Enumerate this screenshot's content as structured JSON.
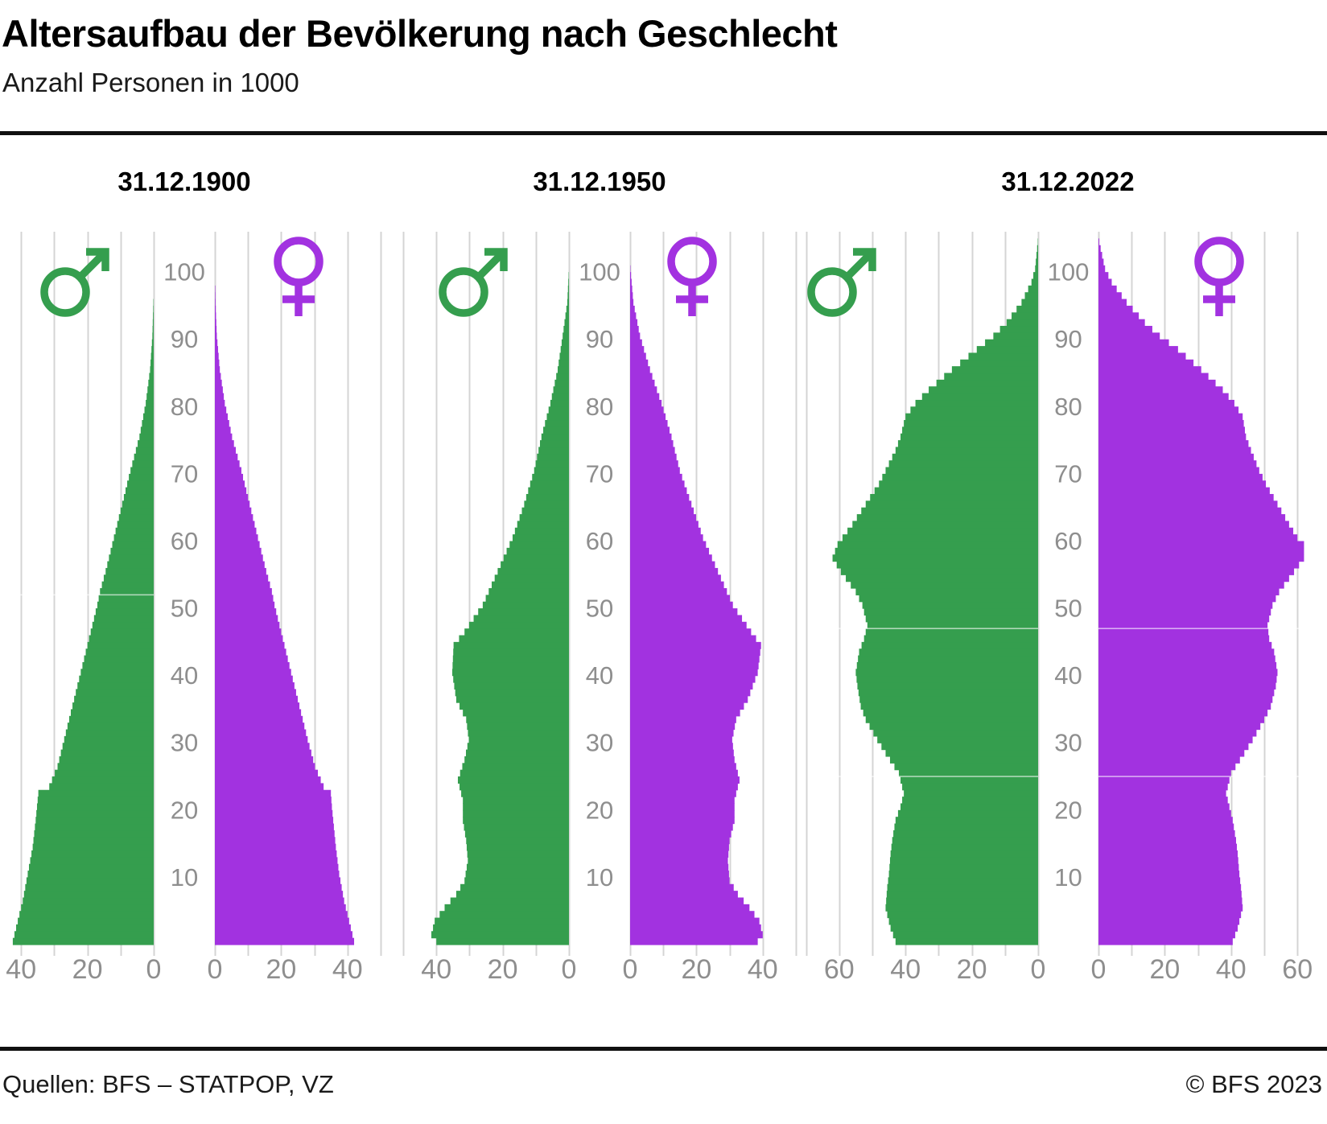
{
  "header": {
    "title": "Altersaufbau der Bevölkerung nach Geschlecht",
    "subtitle": "Anzahl Personen in 1000"
  },
  "footer": {
    "sources": "Quellen: BFS – STATPOP, VZ",
    "copyright": "© BFS 2023"
  },
  "colors": {
    "male": "#359E4E",
    "female": "#A232E0",
    "grid": "#D4D4D4",
    "axis_text": "#8E8E8E",
    "title_text": "#000000",
    "rule": "#101010"
  },
  "icons": {
    "male": "male-symbol-icon",
    "female": "female-symbol-icon"
  },
  "chart_data": [
    {
      "type": "bar",
      "subtype": "population-pyramid",
      "title": "31.12.1900",
      "unit": "Anzahl Personen in 1000",
      "age_ticks": [
        10,
        20,
        30,
        40,
        50,
        60,
        70,
        80,
        90,
        100
      ],
      "value_axis": {
        "male_ticks": [
          40,
          20,
          0
        ],
        "female_ticks": [
          0,
          20,
          40
        ],
        "grid_step": 10,
        "grid_max": 50
      },
      "series": [
        {
          "name": "male",
          "icon": "male-symbol-icon",
          "anchors": {
            "ages": [
              0,
              3,
              6,
              10,
              14,
              18,
              20,
              22,
              23,
              26,
              30,
              35,
              40,
              45,
              50,
              52,
              55,
              60,
              65,
              70,
              75,
              80,
              85,
              90,
              95,
              100
            ],
            "values": [
              42.5,
              41,
              39.5,
              38,
              36.5,
              35.6,
              35.2,
              34.8,
              31.5,
              29,
              27,
              24.5,
              22,
              19.5,
              17,
              16.2,
              14.5,
              12,
              9.5,
              7,
              4.3,
              2.4,
              1.1,
              0.4,
              0.1,
              0
            ]
          }
        },
        {
          "name": "female",
          "icon": "female-symbol-icon",
          "anchors": {
            "ages": [
              0,
              3,
              6,
              10,
              14,
              18,
              20,
              22,
              23,
              26,
              30,
              35,
              40,
              45,
              50,
              52,
              55,
              60,
              65,
              70,
              75,
              80,
              85,
              90,
              95,
              100
            ],
            "values": [
              42,
              40.5,
              39,
              37.5,
              36.5,
              35.7,
              35.3,
              35,
              32.8,
              30.2,
              28,
              25.5,
              23,
              20.5,
              18,
              17.2,
              15.5,
              13,
              10.5,
              8,
              5.2,
              3,
              1.5,
              0.6,
              0.2,
              0
            ]
          }
        }
      ]
    },
    {
      "type": "bar",
      "subtype": "population-pyramid",
      "title": "31.12.1950",
      "unit": "Anzahl Personen in 1000",
      "age_ticks": [
        10,
        20,
        30,
        40,
        50,
        60,
        70,
        80,
        90,
        100
      ],
      "value_axis": {
        "male_ticks": [
          40,
          20,
          0
        ],
        "female_ticks": [
          0,
          20,
          40
        ],
        "grid_step": 10,
        "grid_max": 50
      },
      "series": [
        {
          "name": "male",
          "icon": "male-symbol-icon",
          "anchors": {
            "ages": [
              0,
              1,
              3,
              5,
              7,
              9,
              12,
              15,
              18,
              21,
              24,
              27,
              30,
              33,
              36,
              40,
              44,
              46,
              50,
              55,
              60,
              65,
              70,
              75,
              80,
              85,
              90,
              95,
              100
            ],
            "values": [
              40,
              41.5,
              40.5,
              37.5,
              34,
              31.5,
              30.5,
              31,
              32,
              32,
              33.5,
              31.5,
              30.2,
              31,
              34,
              35.2,
              34.8,
              31.5,
              26,
              21.5,
              17,
              13.5,
              10.5,
              8.3,
              5.6,
              3.4,
              1.9,
              0.5,
              0
            ]
          }
        },
        {
          "name": "female",
          "icon": "female-symbol-icon",
          "anchors": {
            "ages": [
              0,
              1,
              3,
              5,
              7,
              9,
              12,
              15,
              18,
              21,
              24,
              27,
              30,
              33,
              36,
              40,
              44,
              46,
              50,
              55,
              60,
              65,
              70,
              75,
              80,
              85,
              90,
              95,
              100
            ],
            "values": [
              38.5,
              40,
              39,
              36,
              32.5,
              30,
              29.5,
              30,
              31.5,
              31.5,
              33,
              31.5,
              30.8,
              32,
              35.5,
              38.5,
              39.5,
              36.5,
              31,
              26.5,
              22,
              18.5,
              15,
              12.5,
              9.5,
              6,
              3,
              1,
              0.1
            ]
          }
        }
      ]
    },
    {
      "type": "bar",
      "subtype": "population-pyramid",
      "title": "31.12.2022",
      "unit": "Anzahl Personen in 1000",
      "age_ticks": [
        10,
        20,
        30,
        40,
        50,
        60,
        70,
        80,
        90,
        100
      ],
      "value_axis": {
        "male_ticks": [
          60,
          40,
          20,
          0
        ],
        "female_ticks": [
          0,
          20,
          40,
          60
        ],
        "grid_step": 10,
        "grid_max": 70
      },
      "series": [
        {
          "name": "male",
          "icon": "male-symbol-icon",
          "anchors": {
            "ages": [
              0,
              2,
              5,
              8,
              10,
              13,
              15,
              18,
              20,
              22,
              25,
              28,
              30,
              33,
              35,
              38,
              40,
              43,
              45,
              47,
              50,
              52,
              55,
              57,
              59,
              60,
              62,
              65,
              68,
              70,
              73,
              75,
              78,
              80,
              82,
              85,
              88,
              90,
              92,
              95,
              98,
              100
            ],
            "values": [
              43,
              44.5,
              46,
              45.5,
              45,
              44.5,
              44,
              43,
              41.5,
              40.5,
              42,
              46,
              48.5,
              52,
              53.5,
              54.5,
              55,
              54,
              52.5,
              51.5,
              53,
              55,
              59.5,
              62,
              60.5,
              59,
              56,
              52,
              48,
              46,
              43,
              41.5,
              40,
              37,
              33,
              26,
              18.5,
              13.5,
              9.5,
              5,
              2,
              0.9
            ]
          }
        },
        {
          "name": "female",
          "icon": "female-symbol-icon",
          "anchors": {
            "ages": [
              0,
              2,
              5,
              8,
              10,
              13,
              15,
              18,
              20,
              22,
              25,
              28,
              30,
              33,
              35,
              38,
              40,
              43,
              45,
              47,
              50,
              52,
              55,
              57,
              59,
              60,
              62,
              65,
              68,
              70,
              73,
              75,
              78,
              80,
              82,
              85,
              88,
              90,
              92,
              95,
              98,
              100
            ],
            "values": [
              40.5,
              42,
              43.5,
              43,
              42.5,
              42,
              41.5,
              40.5,
              39.5,
              38.5,
              40,
              44,
              46.5,
              50,
              52,
              53.5,
              54,
              53,
              51.5,
              51,
              52.5,
              54.5,
              59,
              62,
              62,
              60,
              57.5,
              54,
              50.5,
              48.5,
              46,
              44.5,
              43.5,
              41,
              37.5,
              31,
              24,
              18.5,
              14,
              8.5,
              4,
              2
            ]
          }
        }
      ]
    }
  ]
}
